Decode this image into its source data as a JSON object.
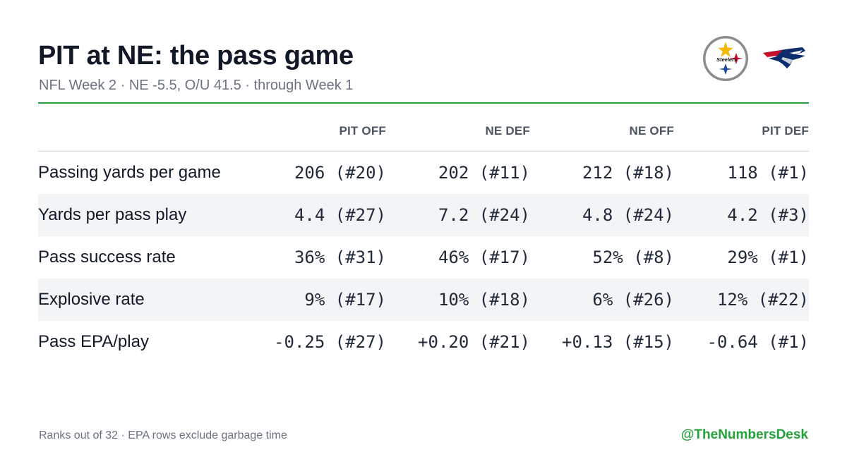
{
  "header": {
    "title": "PIT at NE: the pass game",
    "subtitle": "NFL Week 2 · NE -5.5, O/U 41.5 · through Week 1"
  },
  "logos": {
    "steelers": {
      "icon": "steelers-logo",
      "text": "Steelers"
    },
    "patriots": {
      "icon": "patriots-logo"
    }
  },
  "colors": {
    "accent": "#22a33a",
    "title": "#111827",
    "muted": "#6b7280",
    "row_alt": "#f3f4f6"
  },
  "table": {
    "columns": [
      "",
      "PIT OFF",
      "NE DEF",
      "NE OFF",
      "PIT DEF"
    ],
    "rows": [
      {
        "label": "Passing yards per game",
        "values": [
          "206 (#20)",
          "202 (#11)",
          "212 (#18)",
          "118 (#1)"
        ]
      },
      {
        "label": "Yards per pass play",
        "values": [
          "4.4 (#27)",
          "7.2 (#24)",
          "4.8 (#24)",
          "4.2 (#3)"
        ]
      },
      {
        "label": "Pass success rate",
        "values": [
          "36% (#31)",
          "46% (#17)",
          "52% (#8)",
          "29% (#1)"
        ]
      },
      {
        "label": "Explosive rate",
        "values": [
          "9% (#17)",
          "10% (#18)",
          "6% (#26)",
          "12% (#22)"
        ]
      },
      {
        "label": "Pass EPA/play",
        "values": [
          "-0.25 (#27)",
          "+0.20 (#21)",
          "+0.13 (#15)",
          "-0.64 (#1)"
        ]
      }
    ]
  },
  "footer": {
    "note": "Ranks out of 32 · EPA rows exclude garbage time",
    "handle": "@TheNumbersDesk"
  }
}
